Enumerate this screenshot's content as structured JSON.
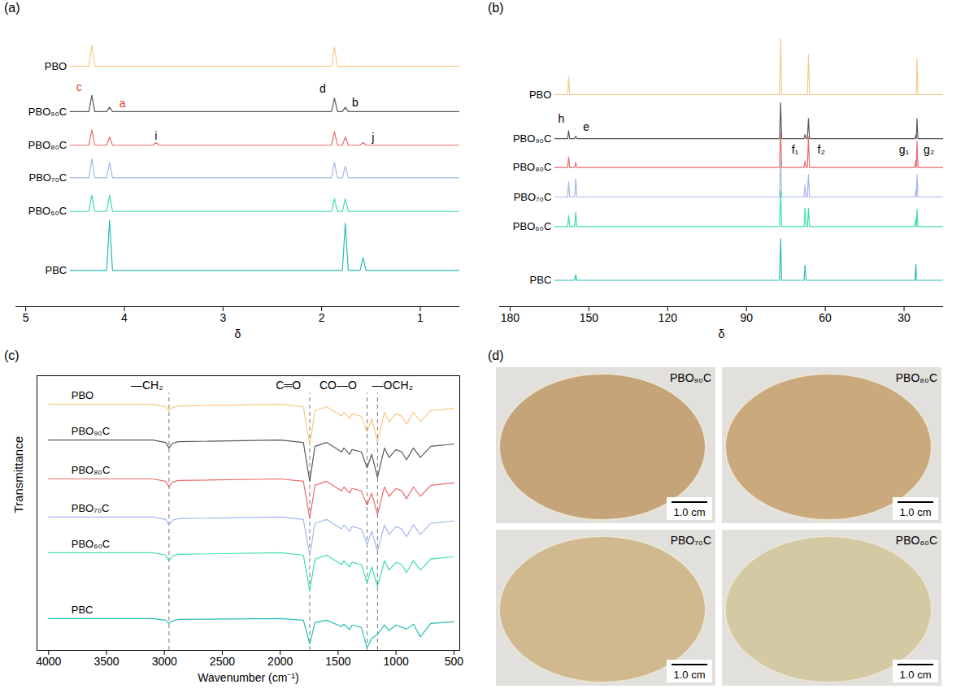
{
  "chart_data": [
    {
      "type": "line",
      "title": "(a)",
      "x_label": "δ",
      "tick_labels": "x",
      "grid": false,
      "xlim": [
        5.1,
        0.6
      ],
      "xticks": [
        5,
        4,
        3,
        2,
        1
      ],
      "ylim": [
        0,
        30
      ],
      "x": [
        4.55,
        4.36,
        4.33,
        4.3,
        4.18,
        4.15,
        4.12,
        3.71,
        3.68,
        3.65,
        1.9,
        1.87,
        1.84,
        1.79,
        1.76,
        1.73,
        1.61,
        1.58,
        1.55,
        0.6
      ],
      "series": [
        {
          "name": "PBO",
          "color": "#f7c98a",
          "values": [
            26.5,
            26.5,
            28.8,
            26.5,
            26.5,
            26.5,
            26.5,
            26.5,
            26.5,
            26.5,
            26.5,
            28.6,
            26.5,
            26.5,
            26.5,
            26.5,
            26.5,
            26.5,
            26.5,
            26.5
          ]
        },
        {
          "name": "PBO₉₀C",
          "color": "#5a5a5a",
          "values": [
            21.5,
            21.5,
            23.3,
            21.5,
            21.5,
            22.0,
            21.5,
            21.5,
            21.5,
            21.5,
            21.5,
            23.0,
            21.5,
            21.5,
            22.0,
            21.5,
            21.5,
            21.5,
            21.5,
            21.5
          ]
        },
        {
          "name": "PBO₈₀C",
          "color": "#ec6b6b",
          "values": [
            17.8,
            17.8,
            19.5,
            17.8,
            17.8,
            18.7,
            17.8,
            17.8,
            18.1,
            17.8,
            17.8,
            19.3,
            17.8,
            17.8,
            18.7,
            17.8,
            17.8,
            18.1,
            17.8,
            17.8
          ]
        },
        {
          "name": "PBO₇₀C",
          "color": "#a3b8ec",
          "values": [
            14.2,
            14.2,
            16.3,
            14.2,
            14.2,
            15.9,
            14.2,
            14.2,
            14.2,
            14.2,
            14.2,
            15.9,
            14.2,
            14.2,
            15.5,
            14.2,
            14.2,
            14.2,
            14.2,
            14.2
          ]
        },
        {
          "name": "PBO₆₀C",
          "color": "#3fe0a4",
          "values": [
            10.5,
            10.5,
            12.3,
            10.5,
            10.5,
            12.3,
            10.5,
            10.5,
            10.5,
            10.5,
            10.5,
            11.9,
            10.5,
            10.5,
            11.9,
            10.5,
            10.5,
            10.5,
            10.5,
            10.5
          ]
        },
        {
          "name": "PBC",
          "color": "#2bbcb5",
          "values": [
            4.0,
            4.0,
            4.0,
            4.0,
            4.0,
            9.5,
            4.0,
            4.0,
            4.0,
            4.0,
            4.0,
            4.0,
            4.0,
            4.0,
            9.2,
            4.0,
            4.0,
            5.4,
            4.0,
            4.0
          ]
        }
      ],
      "annotations": [
        {
          "text": "c",
          "x": 4.46,
          "y": 24.2,
          "color": "#e53935"
        },
        {
          "text": "a",
          "x": 4.02,
          "y": 22.4,
          "color": "#e53935"
        },
        {
          "text": "d",
          "x": 1.99,
          "y": 24.0,
          "color": "#000000"
        },
        {
          "text": "b",
          "x": 1.66,
          "y": 22.5,
          "color": "#000000"
        },
        {
          "text": "i",
          "x": 3.68,
          "y": 18.8,
          "color": "#000000"
        },
        {
          "text": "j",
          "x": 1.48,
          "y": 18.6,
          "color": "#000000"
        }
      ]
    },
    {
      "type": "line",
      "title": "(b)",
      "x_label": "δ",
      "tick_labels": "x",
      "grid": false,
      "xlim": [
        184,
        15
      ],
      "xticks": [
        180,
        150,
        120,
        90,
        60,
        30
      ],
      "ylim": [
        0,
        34
      ],
      "x": [
        163,
        158.1,
        157.7,
        157.3,
        155.4,
        155.0,
        154.6,
        77.4,
        77.0,
        76.6,
        68.1,
        67.7,
        67.3,
        66.8,
        66.4,
        66.0,
        25.9,
        25.5,
        25.3,
        25.1,
        24.7,
        15
      ],
      "series": [
        {
          "name": "PBO",
          "color": "#f7c98a",
          "values": [
            26.5,
            26.5,
            28.7,
            26.5,
            26.5,
            26.5,
            26.5,
            26.5,
            33.5,
            26.5,
            26.5,
            26.5,
            26.5,
            26.5,
            31.5,
            26.5,
            26.5,
            26.5,
            26.5,
            31.0,
            26.5,
            26.5
          ]
        },
        {
          "name": "PBO₉₀C",
          "color": "#5a5a5a",
          "values": [
            21.0,
            21.0,
            22.0,
            21.0,
            21.0,
            21.3,
            21.0,
            21.0,
            25.5,
            21.0,
            21.0,
            21.5,
            21.0,
            21.0,
            23.5,
            21.0,
            21.0,
            21.4,
            21.0,
            23.5,
            21.0,
            21.0
          ]
        },
        {
          "name": "PBO₈₀C",
          "color": "#ec6b6b",
          "values": [
            17.4,
            17.4,
            18.7,
            17.4,
            17.4,
            18.0,
            17.4,
            17.4,
            22.0,
            17.4,
            17.4,
            18.2,
            17.4,
            17.4,
            21.2,
            17.4,
            17.4,
            18.3,
            17.4,
            20.7,
            17.4,
            17.4
          ]
        },
        {
          "name": "PBO₇₀C",
          "color": "#a3b8ec",
          "values": [
            13.7,
            13.7,
            15.6,
            13.7,
            13.7,
            16.0,
            13.7,
            13.7,
            18.5,
            13.7,
            13.7,
            15.2,
            13.7,
            13.7,
            16.5,
            13.7,
            13.7,
            14.6,
            13.7,
            16.5,
            13.7,
            13.7
          ]
        },
        {
          "name": "PBO₆₀C",
          "color": "#3fe0a4",
          "values": [
            10.0,
            10.0,
            11.4,
            10.0,
            10.0,
            11.8,
            10.0,
            10.0,
            14.5,
            10.0,
            10.0,
            12.3,
            10.0,
            10.0,
            12.3,
            10.0,
            10.0,
            11.0,
            10.0,
            12.2,
            10.0,
            10.0
          ]
        },
        {
          "name": "PBC",
          "color": "#2bbcb5",
          "values": [
            3.3,
            3.3,
            3.3,
            3.3,
            3.3,
            4.0,
            3.3,
            3.3,
            8.5,
            3.3,
            3.3,
            5.2,
            3.3,
            3.3,
            3.3,
            3.3,
            3.3,
            5.3,
            3.3,
            3.3,
            3.3,
            3.3
          ]
        }
      ],
      "annotations": [
        {
          "text": "h",
          "x": 160.5,
          "y": 23.4,
          "color": "#000000"
        },
        {
          "text": "e",
          "x": 151.0,
          "y": 22.4,
          "color": "#000000"
        },
        {
          "text": "f₁",
          "x": 71.5,
          "y": 19.6,
          "color": "#000000"
        },
        {
          "text": "f₂",
          "x": 61.5,
          "y": 19.6,
          "color": "#000000"
        },
        {
          "text": "g₁",
          "x": 30.0,
          "y": 19.6,
          "color": "#000000"
        },
        {
          "text": "g₂",
          "x": 20.5,
          "y": 19.6,
          "color": "#000000"
        }
      ]
    },
    {
      "type": "line",
      "title": "(c)",
      "x_label": "Wavenumber (cm⁻¹)",
      "y_label": "Transmittance",
      "tick_labels": "x",
      "grid": false,
      "xlim": [
        4100,
        450
      ],
      "xticks": [
        4000,
        3500,
        3000,
        2500,
        2000,
        1500,
        1000,
        500
      ],
      "ylim": [
        0,
        34.6
      ],
      "x": [
        4000,
        3100,
        2990,
        2960,
        2930,
        2880,
        2000,
        1800,
        1745,
        1700,
        1600,
        1470,
        1450,
        1400,
        1380,
        1300,
        1250,
        1210,
        1160,
        1100,
        1060,
        1000,
        950,
        910,
        850,
        790,
        700,
        500
      ],
      "series": [
        {
          "name": "PBO",
          "color": "#f7c98a",
          "values": [
            31.0,
            31.0,
            30.7,
            30.2,
            30.6,
            30.8,
            31.0,
            30.7,
            25.8,
            30.2,
            30.7,
            29.5,
            30.0,
            29.2,
            29.8,
            29.5,
            27.5,
            29.2,
            26.3,
            30.0,
            28.8,
            29.8,
            29.5,
            28.5,
            30.0,
            28.8,
            30.2,
            30.5
          ]
        },
        {
          "name": "PBO₉₀C",
          "color": "#5a5a5a",
          "values": [
            26.5,
            26.5,
            26.2,
            25.5,
            26.1,
            26.3,
            26.5,
            26.2,
            21.3,
            25.7,
            26.2,
            25.0,
            25.5,
            24.7,
            25.3,
            25.0,
            23.0,
            24.7,
            21.8,
            25.5,
            24.3,
            25.3,
            25.0,
            24.0,
            25.5,
            24.3,
            25.7,
            26.0
          ]
        },
        {
          "name": "PBO₈₀C",
          "color": "#ec6b6b",
          "values": [
            21.6,
            21.6,
            21.3,
            20.6,
            21.2,
            21.4,
            21.6,
            21.3,
            16.6,
            20.8,
            21.3,
            20.1,
            20.6,
            19.8,
            20.4,
            20.1,
            18.3,
            19.8,
            17.1,
            20.6,
            19.4,
            20.4,
            20.1,
            19.1,
            20.6,
            19.4,
            20.8,
            21.1
          ]
        },
        {
          "name": "PBO₇₀C",
          "color": "#a3b8ec",
          "values": [
            16.8,
            16.8,
            16.5,
            15.8,
            16.4,
            16.6,
            16.8,
            16.5,
            11.9,
            16.0,
            16.5,
            15.3,
            15.8,
            15.0,
            15.6,
            15.3,
            13.3,
            15.0,
            12.5,
            15.8,
            14.6,
            15.6,
            15.3,
            14.3,
            15.8,
            14.6,
            16.0,
            16.3
          ]
        },
        {
          "name": "PBO₆₀C",
          "color": "#3fe0a4",
          "values": [
            12.3,
            12.3,
            12.0,
            11.3,
            11.9,
            12.1,
            12.3,
            12.0,
            7.5,
            11.5,
            12.0,
            10.8,
            11.3,
            10.5,
            11.1,
            10.8,
            8.5,
            10.5,
            8.0,
            11.3,
            10.1,
            11.1,
            10.8,
            9.8,
            11.3,
            10.1,
            11.5,
            11.8
          ]
        },
        {
          "name": "PBC",
          "color": "#2bbcb5",
          "values": [
            4.0,
            4.0,
            3.8,
            3.4,
            3.7,
            3.9,
            4.0,
            3.8,
            0.8,
            3.5,
            3.8,
            3.0,
            3.3,
            2.6,
            3.2,
            2.9,
            0.3,
            1.5,
            2.0,
            3.2,
            2.5,
            3.2,
            2.9,
            2.7,
            3.3,
            1.7,
            3.4,
            3.6
          ]
        }
      ],
      "reference_lines": [
        2960,
        1745,
        1250,
        1160
      ],
      "annotations": [
        {
          "text": "—CH₂",
          "x": 3150,
          "y": 33.4,
          "color": "#000000"
        },
        {
          "text": "C═O",
          "x": 1930,
          "y": 33.4,
          "color": "#000000"
        },
        {
          "text": "CO—O",
          "x": 1500,
          "y": 33.4,
          "color": "#000000"
        },
        {
          "text": "—OCH₂",
          "x": 1030,
          "y": 33.4,
          "color": "#000000"
        }
      ]
    }
  ],
  "panel_d": {
    "title": "(d)",
    "photos": [
      {
        "label": "PBO₉₀C",
        "scale_bar": "1.0 cm",
        "color": "#c4a478"
      },
      {
        "label": "PBO₈₀C",
        "scale_bar": "1.0 cm",
        "color": "#caa97c"
      },
      {
        "label": "PBO₇₀C",
        "scale_bar": "1.0 cm",
        "color": "#d1b98f"
      },
      {
        "label": "PBO₆₀C",
        "scale_bar": "1.0 cm",
        "color": "#d3caa4"
      }
    ]
  }
}
